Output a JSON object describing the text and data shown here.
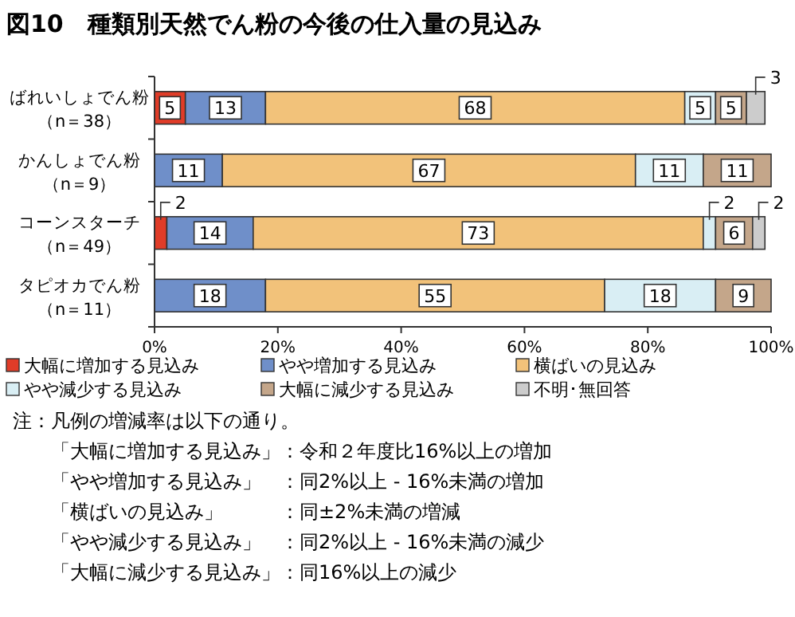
{
  "chart_data": {
    "type": "bar",
    "orientation": "horizontal",
    "stacked": true,
    "title": "図10　種類別天然でん粉の今後の仕入量の見込み",
    "categories": [
      "ばれいしょでん粉（n＝38）",
      "かんしょでん粉（n＝9）",
      "コーンスターチ（n＝49）",
      "タピオカでん粉（n＝11）"
    ],
    "series": [
      {
        "name": "大幅に増加する見込み",
        "color": "#e03c28",
        "values": [
          5,
          null,
          2,
          null
        ]
      },
      {
        "name": "やや増加する見込み",
        "color": "#6f8fc9",
        "values": [
          13,
          11,
          14,
          18
        ]
      },
      {
        "name": "横ばいの見込み",
        "color": "#f2c27a",
        "values": [
          68,
          67,
          73,
          55
        ]
      },
      {
        "name": "やや減少する見込み",
        "color": "#d9eef4",
        "values": [
          5,
          11,
          2,
          18
        ]
      },
      {
        "name": "大幅に減少する見込み",
        "color": "#c4a68a",
        "values": [
          5,
          11,
          6,
          9
        ]
      },
      {
        "name": "不明･無回答",
        "color": "#cccccc",
        "values": [
          3,
          null,
          2,
          null
        ]
      }
    ],
    "xlim": [
      0,
      100
    ],
    "xticks": [
      {
        "value": 0,
        "label": "0%"
      },
      {
        "value": 20,
        "label": "20%"
      },
      {
        "value": 40,
        "label": "40%"
      },
      {
        "value": 60,
        "label": "60%"
      },
      {
        "value": 80,
        "label": "80%"
      },
      {
        "value": 100,
        "label": "100%"
      }
    ],
    "data_labels": true,
    "legend": "bottom",
    "grid": false,
    "annotations": [
      "注：凡例の増減率は以下の通り。",
      "「大幅に増加する見込み」：令和２年度比16%以上の増加",
      "「やや増加する見込み」　：同2%以上 - 16%未満の増加",
      "「横ばいの見込み」　　　：同±2%未満の増減",
      "「やや減少する見込み」　：同2%以上 - 16%未満の減少",
      "「大幅に減少する見込み」：同16%以上の減少"
    ]
  }
}
